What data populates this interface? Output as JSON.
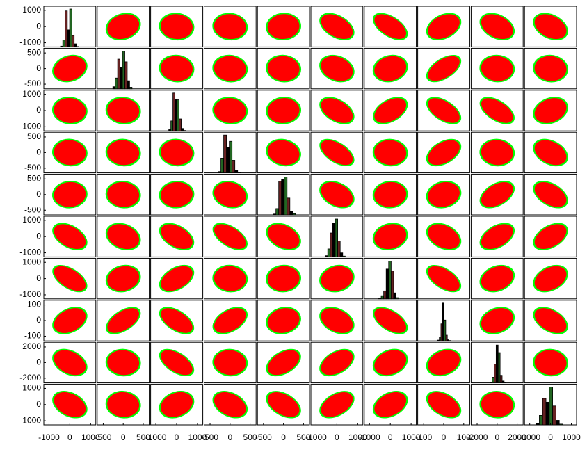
{
  "chart_data": {
    "type": "scatter_matrix",
    "variables": [
      {
        "lim": [
          -1250,
          1250
        ],
        "ticks": [
          -1000,
          0,
          1000
        ],
        "bins": [
          -450,
          -340,
          -230,
          -120,
          -10,
          100,
          210,
          320,
          430
        ],
        "counts": [
          2,
          18,
          95,
          45,
          100,
          30,
          8,
          1
        ]
      },
      {
        "lim": [
          -650,
          650
        ],
        "ticks": [
          -500,
          0,
          500
        ],
        "bins": [
          -260,
          -200,
          -140,
          -80,
          -20,
          40,
          100,
          160,
          220
        ],
        "counts": [
          4,
          20,
          55,
          40,
          70,
          50,
          15,
          3
        ]
      },
      {
        "lim": [
          -1250,
          1250
        ],
        "ticks": [
          -1000,
          0,
          1000
        ],
        "bins": [
          -380,
          -280,
          -180,
          -80,
          20,
          120,
          220,
          320,
          420
        ],
        "counts": [
          3,
          25,
          95,
          80,
          78,
          30,
          6,
          1
        ]
      },
      {
        "lim": [
          -650,
          650
        ],
        "ticks": [
          -500,
          0,
          500
        ],
        "bins": [
          -300,
          -230,
          -160,
          -90,
          -20,
          50,
          120,
          190,
          260
        ],
        "counts": [
          3,
          35,
          90,
          60,
          75,
          30,
          6,
          1
        ]
      },
      {
        "lim": [
          -650,
          650
        ],
        "ticks": [
          -500,
          0,
          500
        ],
        "bins": [
          -260,
          -190,
          -120,
          -50,
          20,
          90,
          160,
          230,
          300
        ],
        "counts": [
          2,
          15,
          80,
          85,
          90,
          40,
          8,
          3
        ]
      },
      {
        "lim": [
          -1250,
          1250
        ],
        "ticks": [
          -1000,
          0,
          1000
        ],
        "bins": [
          -560,
          -440,
          -320,
          -200,
          -80,
          40,
          160,
          280,
          400
        ],
        "counts": [
          3,
          20,
          60,
          85,
          95,
          40,
          10,
          2
        ]
      },
      {
        "lim": [
          -1250,
          1250
        ],
        "ticks": [
          -1000,
          0,
          1000
        ],
        "bins": [
          -560,
          -440,
          -320,
          -200,
          -80,
          40,
          160,
          280,
          400
        ],
        "counts": [
          2,
          8,
          20,
          75,
          95,
          70,
          15,
          3
        ]
      },
      {
        "lim": [
          -130,
          130
        ],
        "ticks": [
          -100,
          0,
          100
        ],
        "bins": [
          -30,
          -22,
          -14,
          -6,
          2,
          10,
          18,
          26,
          34
        ],
        "counts": [
          2,
          10,
          45,
          100,
          55,
          15,
          3,
          1
        ]
      },
      {
        "lim": [
          -2600,
          2600
        ],
        "ticks": [
          -2000,
          0,
          2000
        ],
        "bins": [
          -700,
          -500,
          -300,
          -100,
          100,
          300,
          500,
          700,
          900
        ],
        "counts": [
          2,
          15,
          50,
          100,
          80,
          20,
          5,
          1
        ]
      },
      {
        "lim": [
          -1250,
          1250
        ],
        "ticks": [
          -1000,
          0,
          1000
        ],
        "bins": [
          -700,
          -540,
          -380,
          -220,
          -60,
          100,
          260,
          420,
          580
        ],
        "counts": [
          3,
          25,
          70,
          60,
          100,
          50,
          12,
          2
        ]
      }
    ],
    "correlations": [
      [
        null,
        0.25,
        0,
        0,
        0.1,
        -0.5,
        -0.6,
        0.4,
        -0.4,
        -0.4
      ],
      [
        0.25,
        null,
        0,
        0,
        0,
        -0.3,
        0.2,
        0.6,
        -0.1,
        0
      ],
      [
        0,
        0,
        null,
        0,
        0.1,
        -0.5,
        0.5,
        -0.6,
        -0.6,
        0.3
      ],
      [
        0,
        0,
        0,
        null,
        -0.2,
        -0.6,
        -0.1,
        0.5,
        -0.1,
        -0.4
      ],
      [
        0.1,
        0,
        0.1,
        -0.2,
        null,
        -0.4,
        0.1,
        0.2,
        0.5,
        -0.5
      ],
      [
        -0.5,
        -0.3,
        -0.5,
        -0.6,
        -0.4,
        null,
        0.2,
        -0.4,
        0.5,
        0.5
      ],
      [
        -0.6,
        0.2,
        0.5,
        -0.1,
        0.1,
        0.2,
        null,
        -0.6,
        0.3,
        0.4
      ],
      [
        0.4,
        0.6,
        -0.6,
        0.5,
        0.2,
        -0.4,
        -0.6,
        null,
        0.3,
        -0.5
      ],
      [
        -0.4,
        -0.1,
        -0.6,
        -0.1,
        0.5,
        0.5,
        0.3,
        0.3,
        null,
        -0.1
      ],
      [
        -0.4,
        0,
        0.3,
        -0.4,
        -0.5,
        0.5,
        0.4,
        -0.5,
        -0.1,
        null
      ]
    ],
    "colors": [
      "#00ff00",
      "#ff0000"
    ]
  }
}
